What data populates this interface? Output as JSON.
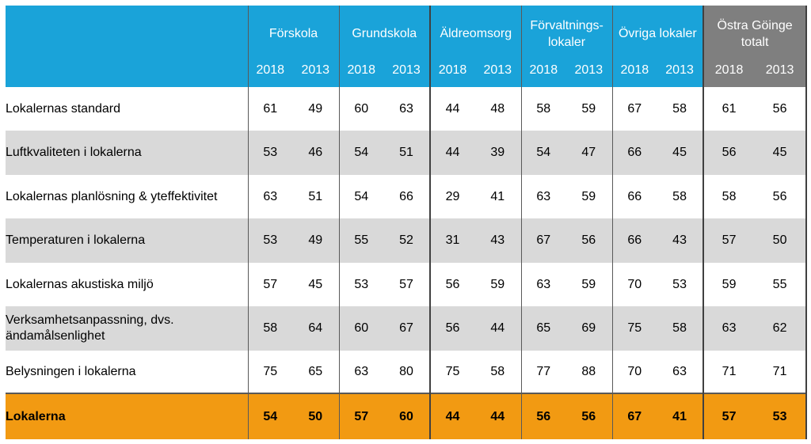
{
  "chart_data": {
    "type": "table",
    "groups": [
      {
        "name": "Förskola",
        "years": [
          "2018",
          "2013"
        ]
      },
      {
        "name": "Grundskola",
        "years": [
          "2018",
          "2013"
        ]
      },
      {
        "name": "Äldreomsorg",
        "years": [
          "2018",
          "2013"
        ]
      },
      {
        "name_line1": "Förvaltnings-",
        "name_line2": "lokaler",
        "years": [
          "2018",
          "2013"
        ]
      },
      {
        "name": "Övriga lokaler",
        "years": [
          "2018",
          "2013"
        ]
      },
      {
        "name_line1": "Östra Göinge",
        "name_line2": "totalt",
        "years": [
          "2018",
          "2013"
        ]
      }
    ],
    "rows": [
      {
        "label": "Lokalernas standard",
        "values": [
          "61",
          "49",
          "60",
          "63",
          "44",
          "48",
          "58",
          "59",
          "67",
          "58",
          "61",
          "56"
        ]
      },
      {
        "label": "Luftkvaliteten i lokalerna",
        "values": [
          "53",
          "46",
          "54",
          "51",
          "44",
          "39",
          "54",
          "47",
          "66",
          "45",
          "56",
          "45"
        ]
      },
      {
        "label": "Lokalernas planlösning & yteffektivitet",
        "values": [
          "63",
          "51",
          "54",
          "66",
          "29",
          "41",
          "63",
          "59",
          "66",
          "58",
          "58",
          "56"
        ]
      },
      {
        "label": "Temperaturen i lokalerna",
        "values": [
          "53",
          "49",
          "55",
          "52",
          "31",
          "43",
          "67",
          "56",
          "66",
          "43",
          "57",
          "50"
        ]
      },
      {
        "label": "Lokalernas akustiska miljö",
        "values": [
          "57",
          "45",
          "53",
          "57",
          "56",
          "59",
          "63",
          "59",
          "70",
          "53",
          "59",
          "55"
        ]
      },
      {
        "label_line1": "Verksamhetsanpassning, dvs.",
        "label_line2": "ändamålsenlighet",
        "values": [
          "58",
          "64",
          "60",
          "67",
          "56",
          "44",
          "65",
          "69",
          "75",
          "58",
          "63",
          "62"
        ]
      },
      {
        "label": "Belysningen i lokalerna",
        "values": [
          "75",
          "65",
          "63",
          "80",
          "75",
          "58",
          "77",
          "88",
          "70",
          "63",
          "71",
          "71"
        ]
      }
    ],
    "total_row": {
      "label": "Lokalerna",
      "values": [
        "54",
        "50",
        "57",
        "60",
        "44",
        "44",
        "56",
        "56",
        "67",
        "41",
        "57",
        "53"
      ]
    }
  },
  "colors": {
    "header": "#1aa3d9",
    "total_header": "#7f7f7f",
    "stripe": "#d9d9d9",
    "total_row": "#f29a12"
  }
}
